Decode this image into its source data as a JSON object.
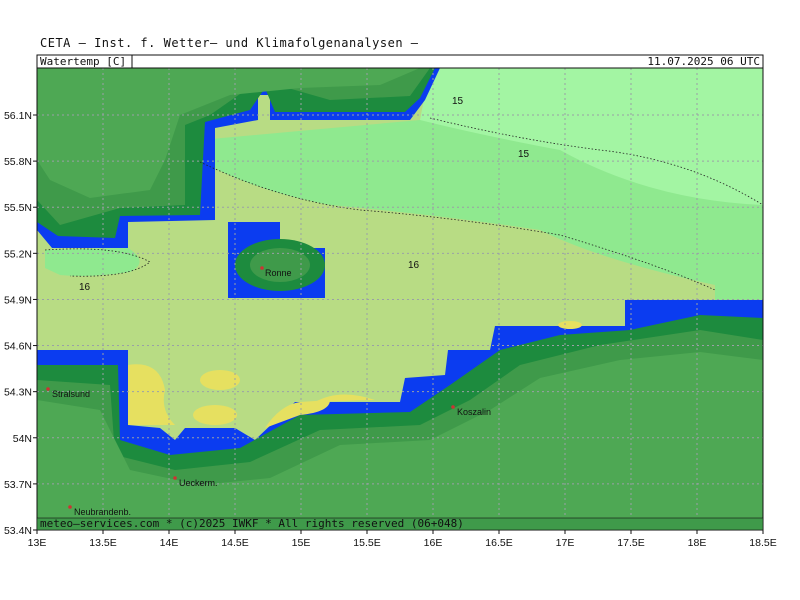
{
  "header": {
    "title": "CETA – Inst. f. Wetter– und Klimafolgenanalysen –"
  },
  "panel": {
    "variable_label": "Watertemp [C]",
    "valid_time": "11.07.2025 06 UTC",
    "footer": "meteo–services.com * (c)2025 IWKF * All rights reserved (06+048)"
  },
  "axes": {
    "lon_ticks": [
      "13E",
      "13.5E",
      "14E",
      "14.5E",
      "15E",
      "15.5E",
      "16E",
      "16.5E",
      "17E",
      "17.5E",
      "18E",
      "18.5E"
    ],
    "lat_ticks": [
      "56.1N",
      "55.8N",
      "55.5N",
      "55.2N",
      "54.9N",
      "54.6N",
      "54.3N",
      "54N",
      "53.7N",
      "53.4N"
    ]
  },
  "isolines": [
    "15",
    "15",
    "16",
    "16"
  ],
  "cities": [
    "Stralsund",
    "Ronne",
    "Koszalin",
    "Ueckerm.",
    "Neubrandenb."
  ],
  "colors": {
    "land_dark": "#4ea854",
    "land_mid": "#3f9a4a",
    "coast_blue": "#0b3cf0",
    "coast_band": "#1d8b3e",
    "sea_15": "#a3f5a3",
    "sea_15_5": "#8fe98f",
    "sea_16": "#b8dc84",
    "sea_warm": "#e6e060"
  }
}
